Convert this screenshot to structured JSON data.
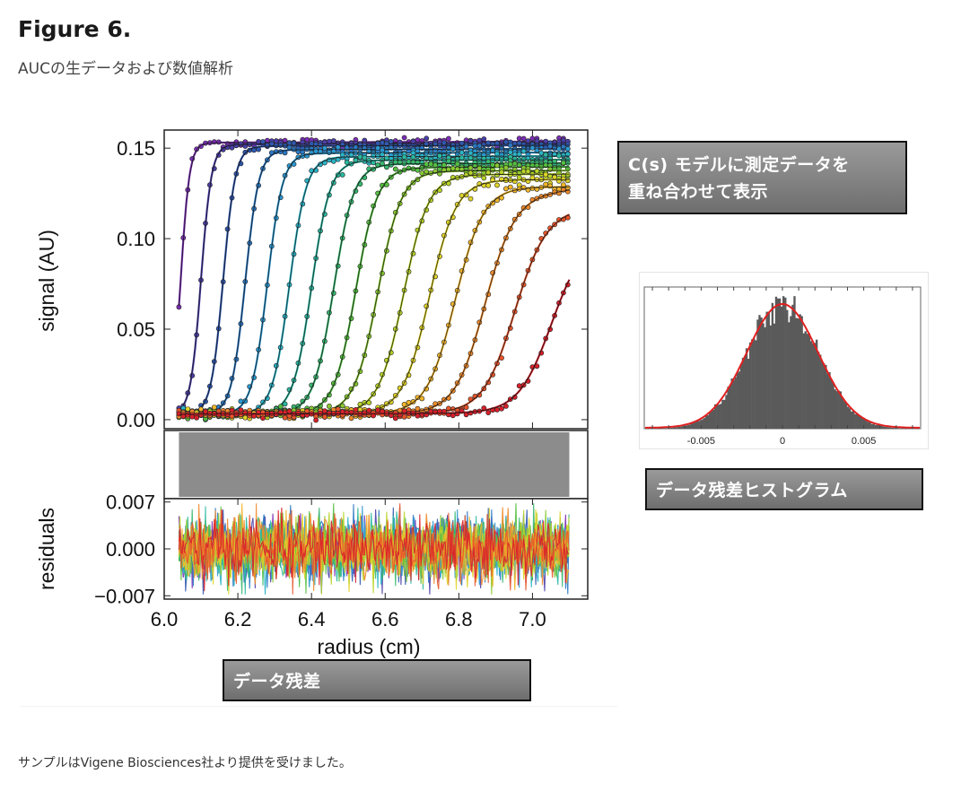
{
  "figure": {
    "title": "Figure 6.",
    "subtitle": "AUCの生データおよび数値解析",
    "footer_note": "サンプルはVigene Biosciences社より提供を受けました。"
  },
  "callouts": {
    "fit_line1": "C(s) モデルに測定データを",
    "fit_line2": "重ね合わせて表示",
    "histogram": "データ残差ヒストグラム",
    "residuals": "データ残差"
  },
  "colors": {
    "curve_palette": [
      "#7b2fb5",
      "#4a3fa8",
      "#2f58b0",
      "#2a78c4",
      "#2a98d2",
      "#2ab4c8",
      "#2ab8a0",
      "#37b870",
      "#55c040",
      "#88c830",
      "#b8d428",
      "#e0d428",
      "#f2b52a",
      "#f08a2a",
      "#e8552a",
      "#d8202a"
    ],
    "histogram_bar": "#5a5a5a",
    "histogram_fit": "#e02020",
    "fit_line": "#111111"
  },
  "chart_data": [
    {
      "type": "line",
      "title": "",
      "xlabel": "radius (cm)",
      "ylabel": "signal (AU)",
      "xlim": [
        6.0,
        7.15
      ],
      "ylim": [
        -0.005,
        0.16
      ],
      "x_ticks": [
        "6.0",
        "6.2",
        "6.4",
        "6.6",
        "6.8",
        "7.0"
      ],
      "y_ticks": [
        "0.00",
        "0.05",
        "0.10",
        "0.15"
      ],
      "series_model": "sigmoidal boundary; plateau rises from 0.153 to ~0.10 for later scans",
      "series": [
        {
          "midpoint": 6.045,
          "plateau": 0.153
        },
        {
          "midpoint": 6.1,
          "plateau": 0.152
        },
        {
          "midpoint": 6.16,
          "plateau": 0.151
        },
        {
          "midpoint": 6.22,
          "plateau": 0.149
        },
        {
          "midpoint": 6.28,
          "plateau": 0.147
        },
        {
          "midpoint": 6.34,
          "plateau": 0.145
        },
        {
          "midpoint": 6.4,
          "plateau": 0.143
        },
        {
          "midpoint": 6.46,
          "plateau": 0.141
        },
        {
          "midpoint": 6.52,
          "plateau": 0.139
        },
        {
          "midpoint": 6.58,
          "plateau": 0.137
        },
        {
          "midpoint": 6.65,
          "plateau": 0.135
        },
        {
          "midpoint": 6.72,
          "plateau": 0.132
        },
        {
          "midpoint": 6.79,
          "plateau": 0.128
        },
        {
          "midpoint": 6.87,
          "plateau": 0.122
        },
        {
          "midpoint": 6.95,
          "plateau": 0.113
        },
        {
          "midpoint": 7.05,
          "plateau": 0.1
        }
      ]
    },
    {
      "type": "line",
      "title": "",
      "xlabel": "radius (cm)",
      "ylabel": "residuals",
      "xlim": [
        6.0,
        7.15
      ],
      "ylim": [
        -0.0075,
        0.0075
      ],
      "x_ticks": [
        "6.0",
        "6.2",
        "6.4",
        "6.6",
        "6.8",
        "7.0"
      ],
      "y_ticks": [
        "0.007",
        "0.000",
        "−0.007"
      ],
      "x_range": [
        6.04,
        7.1
      ],
      "amplitude": 0.005
    },
    {
      "type": "bar",
      "title": "",
      "xlabel": "",
      "x_ticks": [
        "-0.005",
        "0",
        "0.005"
      ],
      "xlim": [
        -0.0085,
        0.0085
      ],
      "distribution": "approximately normal, mean 0, sd 0.0022"
    }
  ]
}
